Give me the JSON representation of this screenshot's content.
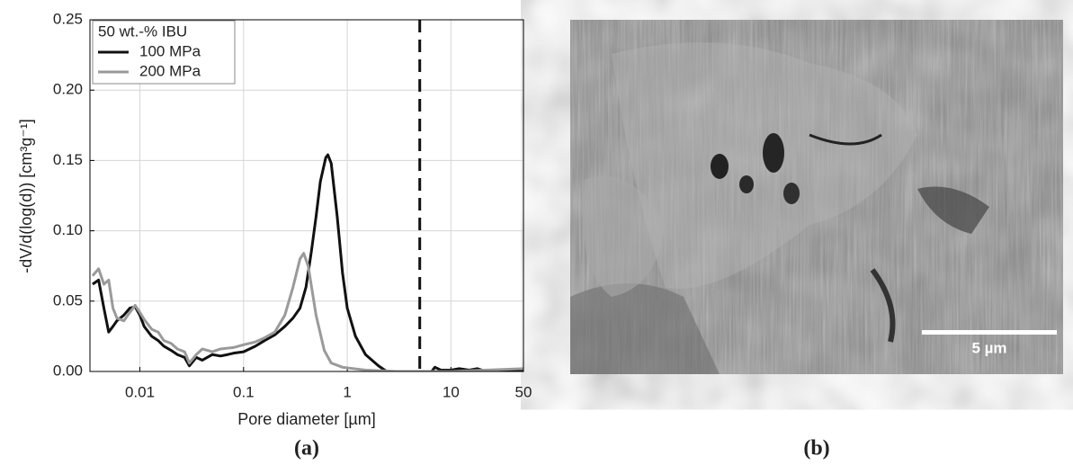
{
  "chart_data": {
    "type": "line",
    "x_label": "Pore diameter [µm]",
    "y_label": "-dV/d(log(d)) [cm³g⁻¹]",
    "legend_title": "50 wt.-% IBU",
    "legend_position": "upper left",
    "caption": "(a)",
    "x_scale": "log",
    "grid": true,
    "xlim": [
      0.0033,
      50
    ],
    "xticks": [
      0.01,
      0.1,
      1,
      10,
      50
    ],
    "ylim": [
      0,
      0.25
    ],
    "yticks": [
      {
        "value": 0,
        "label": "0.00"
      },
      {
        "value": 0.05,
        "label": "0.05"
      },
      {
        "value": 0.1,
        "label": "0.10"
      },
      {
        "value": 0.15,
        "label": "0.15"
      },
      {
        "value": 0.2,
        "label": "0.20"
      },
      {
        "value": 0.25,
        "label": "0.25"
      }
    ],
    "vline": {
      "value": 5,
      "color": "#111111"
    },
    "series": [
      {
        "name": "100 MPa",
        "color": "#111111",
        "x": [
          0.0035,
          0.004,
          0.0045,
          0.005,
          0.0055,
          0.006,
          0.007,
          0.008,
          0.009,
          0.01,
          0.011,
          0.013,
          0.015,
          0.017,
          0.02,
          0.023,
          0.027,
          0.03,
          0.035,
          0.04,
          0.05,
          0.06,
          0.07,
          0.08,
          0.1,
          0.13,
          0.16,
          0.2,
          0.25,
          0.3,
          0.35,
          0.4,
          0.45,
          0.5,
          0.55,
          0.62,
          0.65,
          0.7,
          0.8,
          0.9,
          1.0,
          1.2,
          1.5,
          2,
          2.4,
          6.5,
          7,
          8,
          10,
          12,
          15,
          18,
          22,
          50
        ],
        "values": [
          0.062,
          0.065,
          0.045,
          0.028,
          0.032,
          0.036,
          0.04,
          0.045,
          0.046,
          0.04,
          0.032,
          0.025,
          0.022,
          0.018,
          0.015,
          0.012,
          0.01,
          0.004,
          0.01,
          0.008,
          0.012,
          0.011,
          0.012,
          0.013,
          0.014,
          0.018,
          0.022,
          0.026,
          0.032,
          0.038,
          0.045,
          0.06,
          0.085,
          0.11,
          0.135,
          0.152,
          0.154,
          0.148,
          0.11,
          0.07,
          0.045,
          0.025,
          0.012,
          0.004,
          0,
          0,
          0.003,
          0.001,
          0.001,
          0.002,
          0.001,
          0.002,
          0,
          0
        ]
      },
      {
        "name": "200 MPa",
        "color": "#9a9a9a",
        "x": [
          0.0035,
          0.004,
          0.0045,
          0.005,
          0.0055,
          0.006,
          0.007,
          0.008,
          0.009,
          0.01,
          0.011,
          0.013,
          0.015,
          0.017,
          0.02,
          0.023,
          0.027,
          0.03,
          0.035,
          0.04,
          0.05,
          0.06,
          0.08,
          0.1,
          0.13,
          0.16,
          0.2,
          0.25,
          0.3,
          0.35,
          0.38,
          0.42,
          0.5,
          0.6,
          0.7,
          0.9,
          1.5,
          3,
          10,
          50
        ],
        "values": [
          0.068,
          0.073,
          0.062,
          0.065,
          0.045,
          0.038,
          0.036,
          0.042,
          0.047,
          0.042,
          0.037,
          0.03,
          0.028,
          0.022,
          0.02,
          0.016,
          0.014,
          0.006,
          0.012,
          0.016,
          0.014,
          0.016,
          0.017,
          0.019,
          0.021,
          0.024,
          0.028,
          0.04,
          0.06,
          0.08,
          0.084,
          0.075,
          0.04,
          0.015,
          0.006,
          0.003,
          0.001,
          0,
          0,
          0.002
        ]
      }
    ]
  },
  "image_panel": {
    "scale_label": "5 µm",
    "caption": "(b)"
  }
}
